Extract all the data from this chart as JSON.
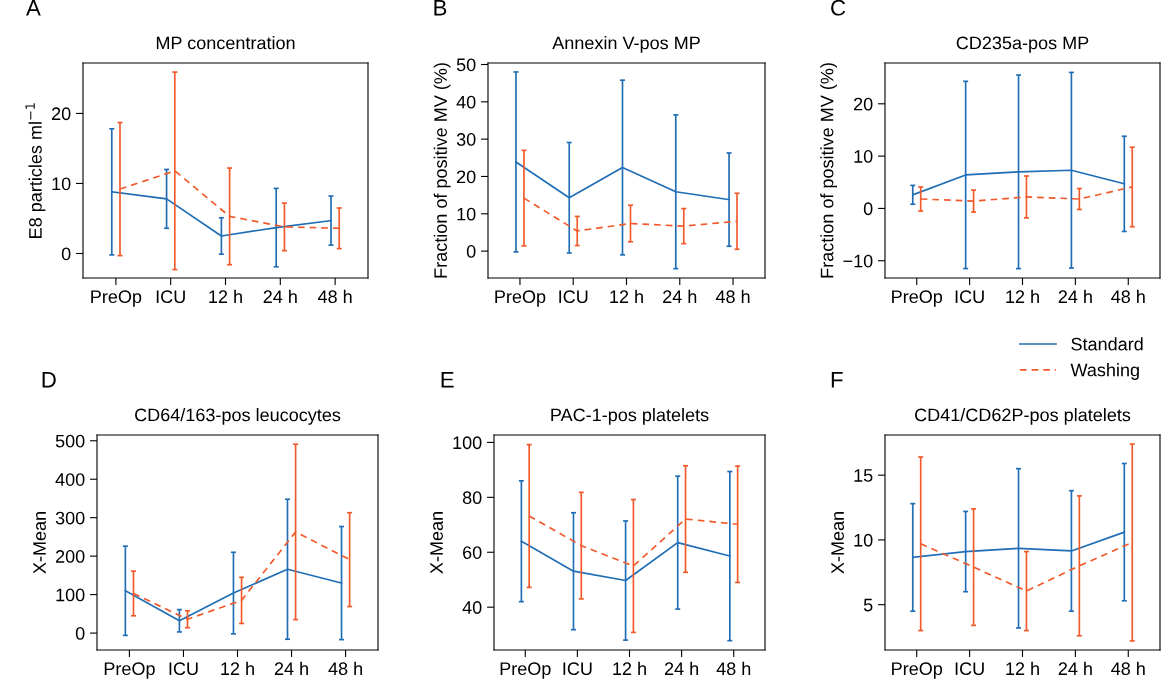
{
  "chart_data": [
    {
      "type": "line",
      "title": "MP concentration",
      "ylabel": "E8 particles ml$^{−1}$",
      "annotations": [
        "A"
      ],
      "categories": [
        "PreOp",
        "ICU",
        "12 h",
        "24 h",
        "48 h"
      ],
      "ylim": [
        -3.5,
        27.2
      ],
      "yticks": [
        0,
        10,
        20
      ],
      "grid": false,
      "legend": false,
      "marker": "none",
      "series": [
        {
          "color": "#1f6db5",
          "line_style": "solid",
          "values": [
            8.8,
            7.8,
            2.5,
            3.7,
            4.7
          ],
          "errors": [
            9.0,
            4.2,
            2.6,
            5.6,
            3.5
          ]
        },
        {
          "color": "#f2592a",
          "line_style": "dashed",
          "values": [
            9.2,
            11.8,
            5.3,
            3.8,
            3.6
          ],
          "errors": [
            9.5,
            14.1,
            6.9,
            3.4,
            2.9
          ]
        }
      ]
    },
    {
      "type": "line",
      "title": "Annexin V-pos MP",
      "ylabel": "Fraction of positive MV (%)",
      "annotations": [
        "B"
      ],
      "categories": [
        "PreOp",
        "ICU",
        "12 h",
        "24 h",
        "48 h"
      ],
      "ylim": [
        -7.2,
        50.4
      ],
      "yticks": [
        0,
        10,
        20,
        30,
        40,
        50
      ],
      "grid": false,
      "legend": false,
      "marker": "none",
      "series": [
        {
          "color": "#1f6db5",
          "line_style": "solid",
          "values": [
            23.9,
            14.3,
            22.4,
            15.9,
            13.8
          ],
          "errors": [
            24.1,
            14.8,
            23.4,
            20.6,
            12.5
          ]
        },
        {
          "color": "#f2592a",
          "line_style": "dashed",
          "values": [
            14.2,
            5.4,
            7.4,
            6.7,
            8.0
          ],
          "errors": [
            12.8,
            3.9,
            4.9,
            4.7,
            7.5
          ]
        }
      ]
    },
    {
      "type": "line",
      "title": "CD235a-pos MP",
      "ylabel": "Fraction of positive MV (%)",
      "annotations": [
        "C"
      ],
      "categories": [
        "PreOp",
        "ICU",
        "12 h",
        "24 h",
        "48 h"
      ],
      "ylim": [
        -13.3,
        27.8
      ],
      "yticks": [
        {
          "value": -10,
          "label": "−10"
        },
        0,
        10,
        20
      ],
      "grid": false,
      "legend": "bottom right",
      "marker": "none",
      "series": [
        {
          "name": "Standard",
          "color": "#1f6db5",
          "line_style": "solid",
          "values": [
            2.6,
            6.4,
            7.0,
            7.3,
            4.7
          ],
          "errors": [
            1.8,
            17.9,
            18.5,
            18.7,
            9.1
          ]
        },
        {
          "name": "Washing",
          "color": "#f2592a",
          "line_style": "dashed",
          "values": [
            1.8,
            1.4,
            2.2,
            1.8,
            4.1
          ],
          "errors": [
            2.3,
            2.1,
            4.0,
            2.0,
            7.6
          ]
        }
      ]
    },
    {
      "type": "line",
      "title": "CD64/163-pos leucocytes",
      "ylabel": "X-Mean",
      "annotations": [
        "D"
      ],
      "categories": [
        "PreOp",
        "ICU",
        "12 h",
        "24 h",
        "48 h"
      ],
      "ylim": [
        -44,
        515
      ],
      "yticks": [
        0,
        100,
        200,
        300,
        400,
        500
      ],
      "grid": false,
      "legend": false,
      "marker": "none",
      "series": [
        {
          "color": "#1f6db5",
          "line_style": "solid",
          "values": [
            110,
            32,
            104,
            166,
            130
          ],
          "errors": [
            116,
            29,
            106,
            182,
            147
          ]
        },
        {
          "color": "#f2592a",
          "line_style": "dashed",
          "values": [
            103,
            36,
            85,
            263,
            191
          ],
          "errors": [
            58,
            22,
            60,
            228,
            122
          ]
        }
      ]
    },
    {
      "type": "line",
      "title": "PAC-1-pos platelets",
      "ylabel": "X-Mean",
      "annotations": [
        "E"
      ],
      "categories": [
        "PreOp",
        "ICU",
        "12 h",
        "24 h",
        "48 h"
      ],
      "ylim": [
        24.4,
        102.7
      ],
      "yticks": [
        40,
        60,
        80,
        100
      ],
      "grid": false,
      "legend": false,
      "marker": "none",
      "series": [
        {
          "color": "#1f6db5",
          "line_style": "solid",
          "values": [
            64.0,
            53.1,
            49.7,
            63.5,
            58.6
          ],
          "errors": [
            22.0,
            21.3,
            21.7,
            24.2,
            30.8
          ]
        },
        {
          "color": "#f2592a",
          "line_style": "dashed",
          "values": [
            73.2,
            62.4,
            55.0,
            72.1,
            70.2
          ],
          "errors": [
            26.0,
            19.4,
            24.2,
            19.4,
            21.2
          ]
        }
      ]
    },
    {
      "type": "line",
      "title": "CD41/CD62P-pos platelets",
      "ylabel": "X-Mean",
      "annotations": [
        "F"
      ],
      "categories": [
        "PreOp",
        "ICU",
        "12 h",
        "24 h",
        "48 h"
      ],
      "ylim": [
        1.5,
        18.1
      ],
      "yticks": [
        5,
        10,
        15
      ],
      "grid": false,
      "legend": false,
      "marker": "none",
      "series": [
        {
          "color": "#1f6db5",
          "line_style": "solid",
          "values": [
            8.65,
            9.1,
            9.35,
            9.15,
            10.6
          ],
          "errors": [
            4.15,
            3.1,
            6.15,
            4.65,
            5.3
          ]
        },
        {
          "color": "#f2592a",
          "line_style": "dashed",
          "values": [
            9.7,
            7.9,
            6.05,
            8.0,
            9.8
          ],
          "errors": [
            6.7,
            4.5,
            3.05,
            5.4,
            7.6
          ]
        }
      ]
    }
  ]
}
